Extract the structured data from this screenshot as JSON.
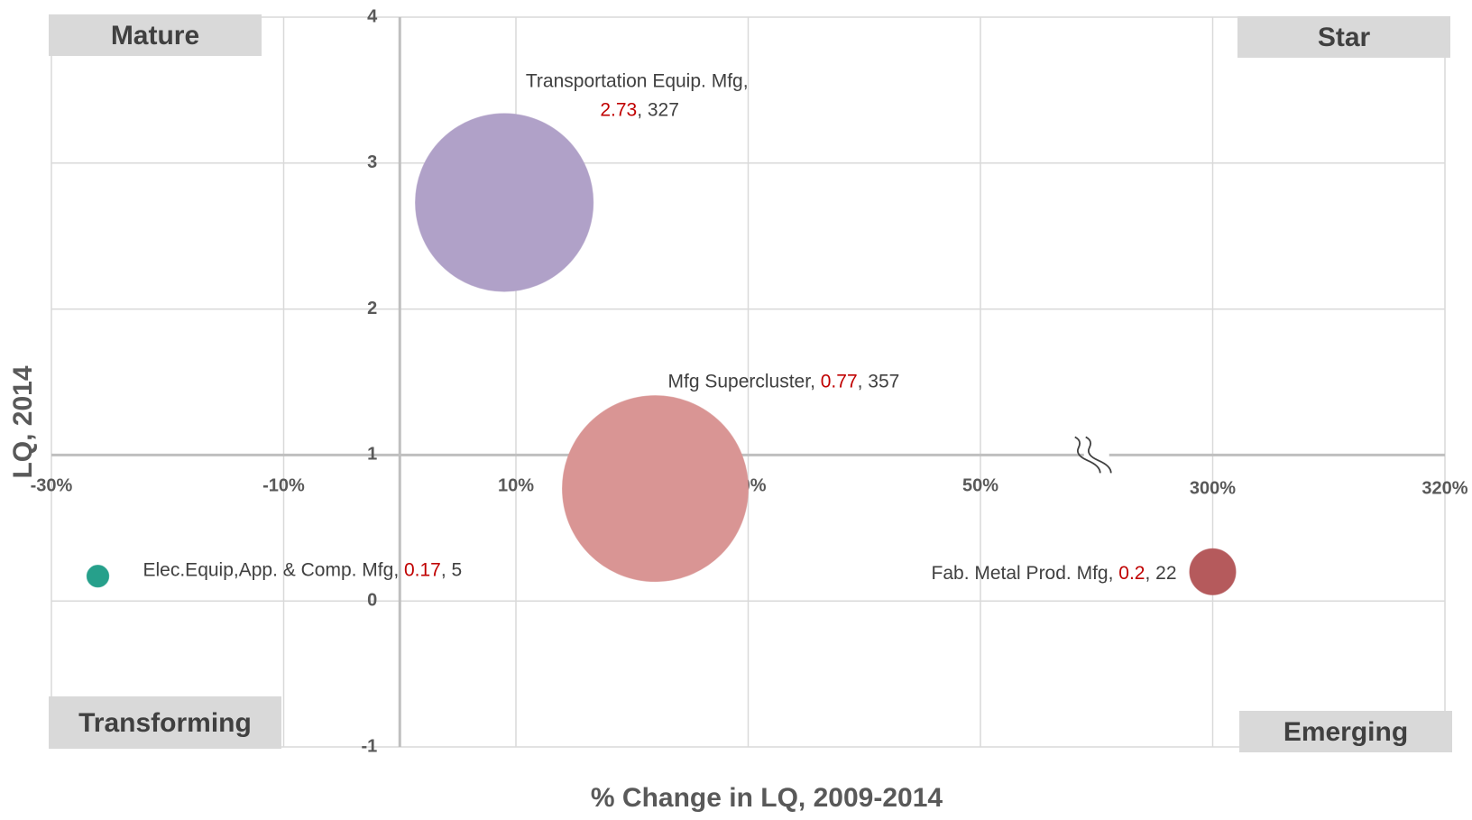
{
  "chart_data": {
    "type": "bubble",
    "x_axis_label": "% Change in LQ, 2009-2014",
    "y_axis_label": "LQ, 2014",
    "xlim": [
      -30,
      320
    ],
    "xbreak": [
      60,
      290
    ],
    "xticks": [
      {
        "value": -30,
        "label": "-30%"
      },
      {
        "value": -10,
        "label": "-10%"
      },
      {
        "value": 10,
        "label": "10%"
      },
      {
        "value": 30,
        "label": "30%"
      },
      {
        "value": 50,
        "label": "50%"
      },
      {
        "value": 300,
        "label": "300%"
      },
      {
        "value": 320,
        "label": "320%"
      }
    ],
    "ylim": [
      -1,
      4
    ],
    "yticks": [
      -1,
      0,
      1,
      2,
      3,
      4
    ],
    "y_axis_at_x": 0,
    "x_axis_at_y": 1,
    "grid": true,
    "label_separator": ", ",
    "value_color": "#c00000",
    "quadrants": {
      "top_left": "Mature",
      "top_right": "Star",
      "bottom_left": "Transforming",
      "bottom_right": "Emerging"
    },
    "points": [
      {
        "name": "Transportation Equip. Mfg",
        "color": "#b0a1c8",
        "x": 9,
        "y": 2.73,
        "size": 327
      },
      {
        "name": "Mfg Supercluster",
        "color": "#d99594",
        "x": 22,
        "y": 0.77,
        "size": 357
      },
      {
        "name": "Elec.Equip,App. & Comp. Mfg",
        "color": "#26a08b",
        "x": -26,
        "y": 0.17,
        "size": 5
      },
      {
        "name": "Fab. Metal Prod. Mfg",
        "color": "#b55a5c",
        "x": 300,
        "y": 0.2,
        "size": 22
      }
    ]
  }
}
